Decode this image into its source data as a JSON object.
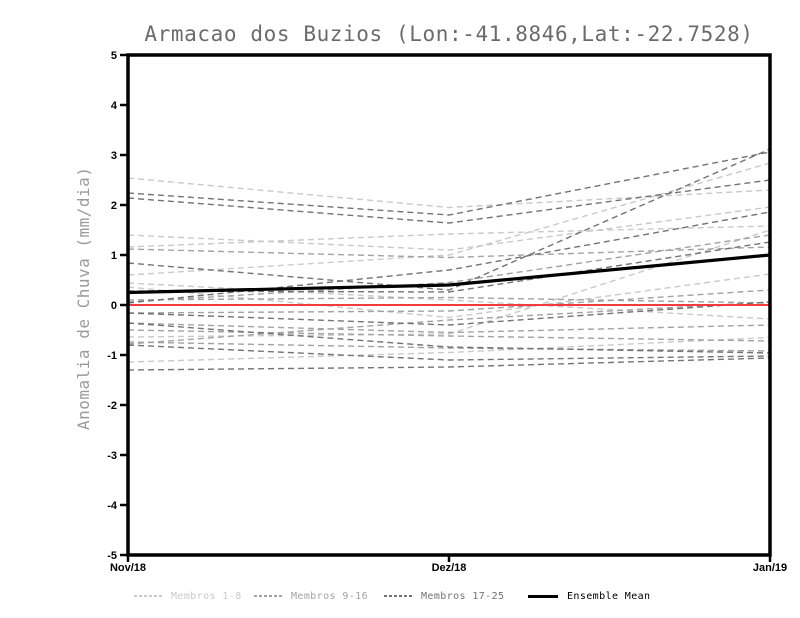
{
  "title": "Armacao dos Buzios (Lon:-41.8846,Lat:-22.7528)",
  "ylabel": "Anomalia de Chuva (mm/dia)",
  "chart_data": {
    "type": "line",
    "x_categories": [
      "Nov/18",
      "Dez/18",
      "Jan/19"
    ],
    "ylim": [
      -5,
      5
    ],
    "yticks": [
      5,
      4,
      3,
      2,
      1,
      0,
      -1,
      -2,
      -3,
      -4,
      -5
    ],
    "grid": false,
    "legend_position": "bottom",
    "series_groups": [
      {
        "name": "Membros 1-8",
        "color": "#c9c9c9",
        "line_style": "dashed",
        "members": [
          [
            2.54,
            1.95,
            2.3
          ],
          [
            1.4,
            1.1,
            1.96
          ],
          [
            1.16,
            1.42,
            1.58
          ],
          [
            0.6,
            1.0,
            2.84
          ],
          [
            0.44,
            0.1,
            -0.28
          ],
          [
            0.36,
            -0.25,
            0.62
          ],
          [
            -1.14,
            -0.95,
            -0.65
          ],
          [
            -0.64,
            -0.58,
            1.5
          ]
        ]
      },
      {
        "name": "Membros 9-16",
        "color": "#a2a2a2",
        "line_style": "dashed",
        "members": [
          [
            1.12,
            0.95,
            1.16
          ],
          [
            0.06,
            0.45,
            1.4
          ],
          [
            -0.16,
            -0.12,
            0.3
          ],
          [
            -0.36,
            -0.55,
            -0.4
          ],
          [
            -0.74,
            -0.86,
            -0.92
          ],
          [
            -0.78,
            -0.3,
            0.06
          ],
          [
            0.1,
            0.15,
            0.04
          ],
          [
            -0.5,
            -0.62,
            -0.72
          ]
        ]
      },
      {
        "name": "Membros 17-25",
        "color": "#737373",
        "line_style": "dashed",
        "members": [
          [
            2.24,
            1.8,
            3.06
          ],
          [
            2.14,
            1.64,
            2.5
          ],
          [
            0.84,
            0.3,
            3.12
          ],
          [
            0.04,
            0.7,
            1.86
          ],
          [
            0.28,
            0.26,
            1.26
          ],
          [
            -0.16,
            -0.4,
            0.06
          ],
          [
            -0.36,
            -0.84,
            -0.96
          ],
          [
            -0.8,
            -1.1,
            -1.02
          ],
          [
            -1.3,
            -1.24,
            -1.06
          ]
        ]
      }
    ],
    "zero_line": {
      "color": "#f03c3c",
      "values": [
        0,
        0,
        0
      ]
    },
    "ensemble_mean": {
      "name": "Ensemble Mean",
      "color": "#000000",
      "values": [
        0.25,
        0.4,
        1.0
      ]
    }
  },
  "legend": {
    "items": [
      {
        "label": "Membros 1-8",
        "color": "#c9c9c9",
        "sample": "dashed"
      },
      {
        "label": "Membros 9-16",
        "color": "#a2a2a2",
        "sample": "dashed"
      },
      {
        "label": "Membros 17-25",
        "color": "#737373",
        "sample": "dashed"
      },
      {
        "label": "Ensemble Mean",
        "color": "#000000",
        "sample": "solid"
      }
    ]
  }
}
